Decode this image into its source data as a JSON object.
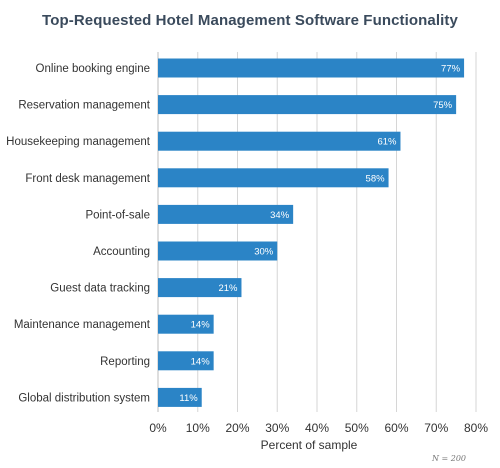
{
  "chart_data": {
    "type": "bar",
    "orientation": "horizontal",
    "title": "Top-Requested Hotel Management Software Functionality",
    "categories": [
      "Online booking engine",
      "Reservation management",
      "Housekeeping management",
      "Front desk management",
      "Point-of-sale",
      "Accounting",
      "Guest data tracking",
      "Maintenance management",
      "Reporting",
      "Global distribution system"
    ],
    "values": [
      77,
      75,
      61,
      58,
      34,
      30,
      21,
      14,
      14,
      11
    ],
    "value_labels": [
      "77%",
      "75%",
      "61%",
      "58%",
      "34%",
      "30%",
      "21%",
      "14%",
      "14%",
      "11%"
    ],
    "xlabel": "Percent of sample",
    "ylabel": "",
    "xlim": [
      0,
      80
    ],
    "xticks": [
      0,
      10,
      20,
      30,
      40,
      50,
      60,
      70,
      80
    ],
    "xtick_labels": [
      "0%",
      "10%",
      "20%",
      "30%",
      "40%",
      "50%",
      "60%",
      "70%",
      "80%"
    ],
    "grid": true,
    "bar_color": "#2b84c6",
    "footnote": "N = 200"
  }
}
